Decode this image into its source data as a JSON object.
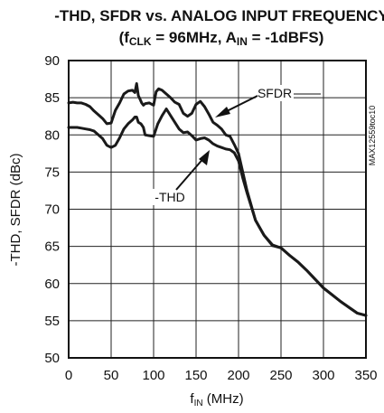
{
  "chart_data": {
    "type": "line",
    "title_line1": "-THD, SFDR vs. ANALOG INPUT FREQUENCY",
    "title_line2": {
      "open": "(f",
      "clk_sub": "CLK",
      "mid": " = 96MHz, A",
      "in_sub": "IN",
      "close": " = -1dBFS)"
    },
    "xlabel": {
      "base": "f",
      "sub": "IN",
      "rest": " (MHz)"
    },
    "ylabel": "-THD, SFDR (dBc)",
    "xlim": [
      0,
      350
    ],
    "ylim": [
      50,
      90
    ],
    "x_ticks": [
      0,
      50,
      100,
      150,
      200,
      250,
      300,
      350
    ],
    "y_ticks": [
      50,
      55,
      60,
      65,
      70,
      75,
      80,
      85,
      90
    ],
    "grid": true,
    "side_code": "MAX12559toc10",
    "series": [
      {
        "name": "SFDR",
        "x": [
          0,
          5,
          10,
          15,
          20,
          25,
          30,
          35,
          40,
          45,
          50,
          55,
          60,
          65,
          70,
          75,
          78,
          80,
          82,
          84,
          86,
          88,
          90,
          95,
          100,
          103,
          106,
          110,
          115,
          120,
          125,
          130,
          135,
          140,
          145,
          150,
          155,
          160,
          165,
          170,
          175,
          180,
          185,
          190,
          195,
          200,
          205,
          210,
          220,
          230,
          240,
          250,
          260,
          270,
          280,
          290,
          300,
          310,
          320,
          330,
          340,
          350
        ],
        "values": [
          84.3,
          84.4,
          84.3,
          84.3,
          84.1,
          83.8,
          83.2,
          82.7,
          82.2,
          81.5,
          81.6,
          83.3,
          84.3,
          85.5,
          85.9,
          86.0,
          85.7,
          86.9,
          85.3,
          84.8,
          84.3,
          84.0,
          84.2,
          84.3,
          84.0,
          85.8,
          86.2,
          86.0,
          85.5,
          85.0,
          84.4,
          84.1,
          82.9,
          82.5,
          82.9,
          84.1,
          84.5,
          83.8,
          82.8,
          81.7,
          81.3,
          80.8,
          80.0,
          79.8,
          78.7,
          77.5,
          75.0,
          72.5,
          68.5,
          66.5,
          65.2,
          64.8,
          63.8,
          62.9,
          61.8,
          60.6,
          59.4,
          58.5,
          57.6,
          56.8,
          56.0,
          55.7
        ]
      },
      {
        "name": "-THD",
        "x": [
          0,
          5,
          10,
          15,
          20,
          25,
          30,
          35,
          40,
          45,
          50,
          55,
          60,
          65,
          70,
          75,
          78,
          80,
          82,
          85,
          88,
          90,
          95,
          100,
          105,
          110,
          115,
          120,
          125,
          130,
          135,
          140,
          145,
          150,
          155,
          160,
          165,
          170,
          175,
          180,
          185,
          190,
          195,
          200,
          205,
          210,
          220,
          230,
          240,
          250,
          260,
          270,
          280,
          290,
          300,
          310,
          320,
          330,
          340,
          350
        ],
        "values": [
          81.0,
          81.0,
          81.0,
          80.9,
          80.8,
          80.7,
          80.5,
          80.0,
          79.5,
          78.6,
          78.3,
          78.6,
          79.6,
          80.8,
          81.5,
          82.0,
          82.4,
          82.4,
          81.7,
          81.5,
          81.0,
          80.0,
          79.9,
          79.8,
          81.5,
          82.6,
          83.5,
          82.6,
          81.7,
          80.8,
          80.3,
          80.4,
          79.9,
          79.3,
          79.5,
          79.6,
          79.3,
          78.8,
          78.5,
          78.3,
          78.1,
          78.0,
          77.6,
          76.5,
          74.2,
          72.2,
          68.5,
          66.5,
          65.1,
          64.8,
          63.8,
          62.9,
          61.8,
          60.6,
          59.4,
          58.5,
          57.6,
          56.8,
          56.0,
          55.7
        ]
      }
    ],
    "annotations": [
      {
        "text": "SFDR",
        "series": "SFDR"
      },
      {
        "text": "-THD",
        "series": "-THD"
      }
    ]
  }
}
